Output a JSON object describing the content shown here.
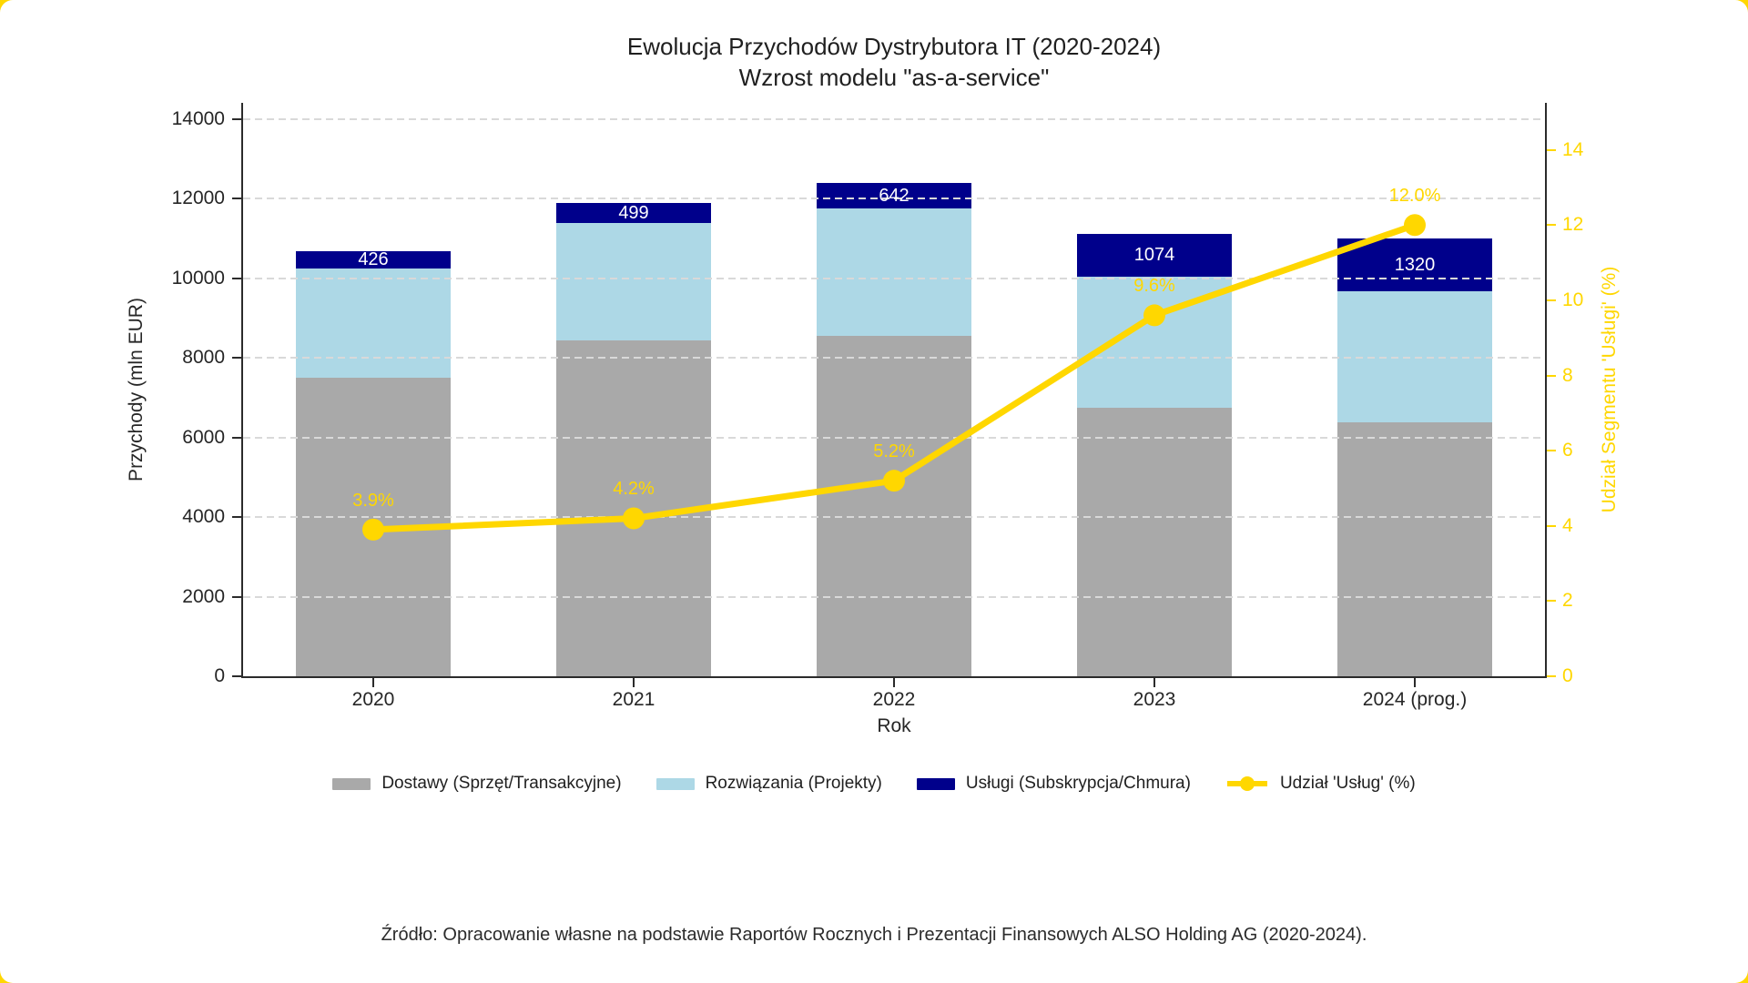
{
  "title": {
    "line1": "Ewolucja Przychodów Dystrybutora IT (2020-2024)",
    "line2": "Wzrost modelu \"as-a-service\""
  },
  "axes": {
    "y_left": {
      "label": "Przychody (mln EUR)",
      "tick_labels": [
        "0",
        "2000",
        "4000",
        "6000",
        "8000",
        "10000",
        "12000",
        "14000"
      ],
      "color": "#262626"
    },
    "y_right": {
      "label": "Udział Segmentu 'Usługi' (%)",
      "tick_labels": [
        "0",
        "2",
        "4",
        "6",
        "8",
        "10",
        "12",
        "14"
      ],
      "color": "#FFD700"
    },
    "x": {
      "label": "Rok",
      "tick_labels": [
        "2020",
        "2021",
        "2022",
        "2023",
        "2024 (prog.)"
      ]
    }
  },
  "chart_data": {
    "type": "bar",
    "subtype": "stacked-bars-with-line-overlay",
    "title": "Ewolucja Przychodów Dystrybutora IT (2020-2024) — Wzrost modelu \"as-a-service\"",
    "xlabel": "Rok",
    "ylabel": "Przychody (mln EUR)",
    "ylabel_right": "Udział Segmentu 'Usługi' (%)",
    "categories": [
      "2020",
      "2021",
      "2022",
      "2023",
      "2024 (prog.)"
    ],
    "ylim_left": [
      0,
      14000
    ],
    "ylim_right": [
      0,
      14
    ],
    "grid": "horizontal dashed gridlines at 2000-unit steps, drawn above bars",
    "legend_position": "bottom center",
    "series": [
      {
        "name": "Dostawy (Sprzęt/Transakcyjne)",
        "render": "bar-stacked",
        "color": "#A9A9A9",
        "values": [
          7500,
          8430,
          8550,
          6750,
          6380
        ]
      },
      {
        "name": "Rozwiązania (Projekty)",
        "render": "bar-stacked",
        "color": "#ADD8E6",
        "values": [
          2750,
          2950,
          3200,
          3290,
          3300
        ]
      },
      {
        "name": "Usługi (Subskrypcja/Chmura)",
        "render": "bar-stacked",
        "color": "#00008B",
        "values": [
          426,
          499,
          642,
          1074,
          1320
        ],
        "value_labels": [
          "426",
          "499",
          "642",
          "1074",
          "1320"
        ],
        "value_label_color": "#ffffff"
      },
      {
        "name": "Udział 'Usług' (%)",
        "render": "line",
        "axis": "right",
        "color": "#FFD700",
        "values": [
          3.9,
          4.2,
          5.2,
          9.6,
          12.0
        ],
        "point_labels": [
          "3.9%",
          "4.2%",
          "5.2%",
          "9.6%",
          "12.0%"
        ]
      }
    ]
  },
  "legend": {
    "items": [
      {
        "label": "Dostawy (Sprzęt/Transakcyjne)",
        "swatch": "gray-rect",
        "color": "#A9A9A9"
      },
      {
        "label": "Rozwiązania (Projekty)",
        "swatch": "lightblue-rect",
        "color": "#ADD8E6"
      },
      {
        "label": "Usługi (Subskrypcja/Chmura)",
        "swatch": "darkblue-rect",
        "color": "#00008B"
      },
      {
        "label": "Udział 'Usług' (%)",
        "swatch": "gold-line-marker",
        "color": "#FFD700"
      }
    ]
  },
  "source_note": "Źródło: Opracowanie własne na podstawie Raportów Rocznych i Prezentacji Finansowych ALSO Holding AG (2020-2024).",
  "colors": {
    "page_background": "#FFD700",
    "card_background": "#ffffff",
    "bar_gray": "#A9A9A9",
    "bar_lightblue": "#ADD8E6",
    "bar_darkblue": "#00008B",
    "line_gold": "#FFD700",
    "gridline": "#d9d9d9",
    "text": "#1f1f1f"
  }
}
